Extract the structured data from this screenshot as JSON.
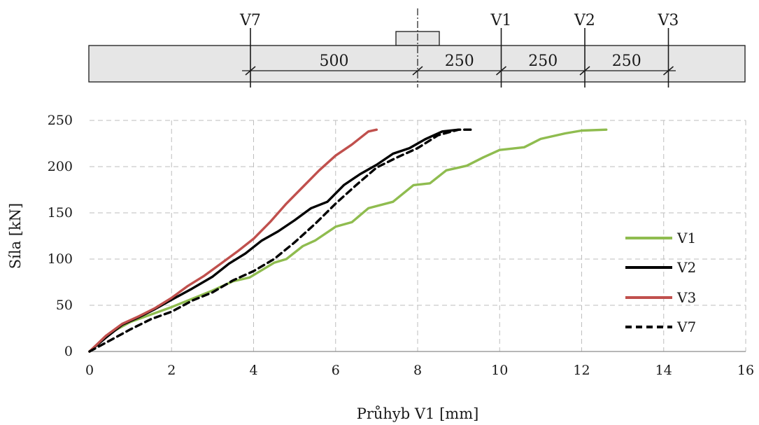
{
  "diagram": {
    "sensors": [
      {
        "label": "V7",
        "pos": -500
      },
      {
        "label": "V1",
        "pos": 250
      },
      {
        "label": "V2",
        "pos": 500
      },
      {
        "label": "V3",
        "pos": 750
      }
    ],
    "dimensions": [
      {
        "label": "500",
        "from": -500,
        "to": 0
      },
      {
        "label": "250",
        "from": 0,
        "to": 250
      },
      {
        "label": "250",
        "from": 250,
        "to": 500
      },
      {
        "label": "250",
        "from": 500,
        "to": 750
      }
    ]
  },
  "chart_data": {
    "type": "line",
    "xlabel": "Průhyb V1 [mm]",
    "ylabel": "Síla [kN]",
    "xlim": [
      0,
      16
    ],
    "ylim": [
      0,
      250
    ],
    "xticks": [
      0,
      2,
      4,
      6,
      8,
      10,
      12,
      14,
      16
    ],
    "yticks": [
      0,
      50,
      100,
      150,
      200,
      250
    ],
    "grid": true,
    "legend_position": "right",
    "series": [
      {
        "name": "V1",
        "color": "#8fbc4f",
        "dash": "solid",
        "x": [
          0,
          0.5,
          1.0,
          1.5,
          2.0,
          2.5,
          3.0,
          3.5,
          3.9,
          4.5,
          4.8,
          5.2,
          5.5,
          6.0,
          6.4,
          6.8,
          7.4,
          7.9,
          8.3,
          8.7,
          9.2,
          9.6,
          10.0,
          10.6,
          11.0,
          11.6,
          12.0,
          12.6
        ],
        "y": [
          0,
          20,
          32,
          40,
          48,
          57,
          66,
          76,
          80,
          96,
          100,
          114,
          120,
          135,
          140,
          155,
          162,
          180,
          182,
          196,
          201,
          210,
          218,
          221,
          230,
          236,
          239,
          240
        ]
      },
      {
        "name": "V2",
        "color": "#000000",
        "dash": "solid",
        "x": [
          0,
          0.4,
          0.8,
          1.2,
          1.6,
          2.0,
          2.5,
          3.0,
          3.4,
          3.8,
          4.2,
          4.6,
          5.0,
          5.4,
          5.8,
          6.2,
          6.6,
          7.0,
          7.4,
          7.8,
          8.2,
          8.6,
          9.0
        ],
        "y": [
          0,
          15,
          29,
          37,
          46,
          56,
          68,
          81,
          95,
          106,
          120,
          130,
          142,
          155,
          162,
          180,
          192,
          202,
          214,
          220,
          230,
          238,
          240
        ]
      },
      {
        "name": "V3",
        "color": "#c0504d",
        "dash": "solid",
        "x": [
          0,
          0.4,
          0.8,
          1.2,
          1.6,
          2.0,
          2.4,
          2.8,
          3.2,
          3.6,
          4.0,
          4.4,
          4.8,
          5.2,
          5.6,
          6.0,
          6.4,
          6.8,
          7.0
        ],
        "y": [
          0,
          17,
          30,
          38,
          47,
          58,
          71,
          82,
          95,
          108,
          122,
          140,
          160,
          178,
          196,
          212,
          224,
          238,
          240
        ]
      },
      {
        "name": "V7",
        "color": "#000000",
        "dash": "dashed",
        "x": [
          0,
          0.5,
          1.0,
          1.5,
          2.0,
          2.5,
          3.0,
          3.5,
          4.0,
          4.5,
          5.0,
          5.5,
          6.0,
          6.5,
          7.0,
          7.5,
          8.0,
          8.5,
          9.0,
          9.3
        ],
        "y": [
          0,
          12,
          24,
          35,
          43,
          55,
          64,
          77,
          87,
          100,
          118,
          138,
          160,
          180,
          199,
          210,
          220,
          234,
          240,
          240
        ]
      }
    ]
  }
}
